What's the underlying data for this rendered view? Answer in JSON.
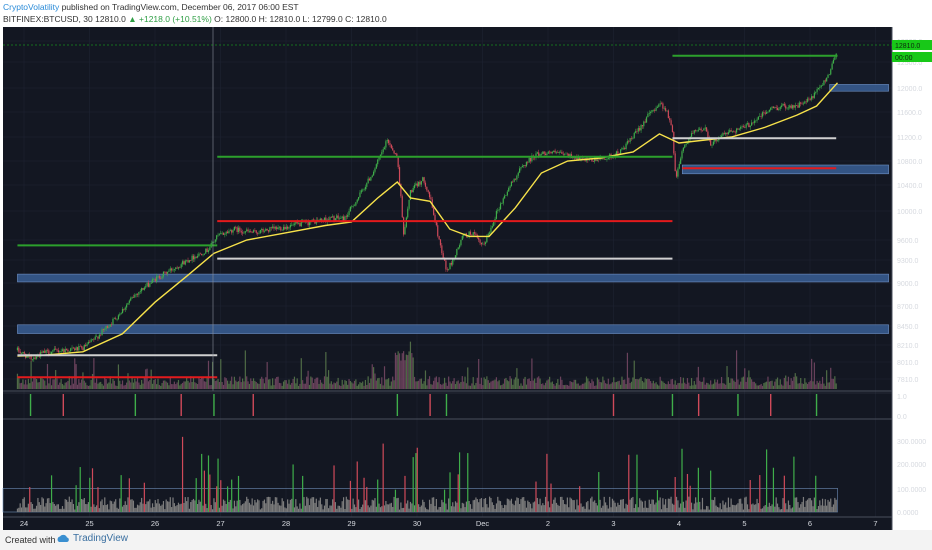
{
  "header": {
    "author": "CryptoVolatility",
    "published": " published on TradingView.com, December 06, 2017 06:00 EST",
    "symbol": "BITFINEX:BTCUSD, 30",
    "last": "12810.0",
    "change": "▲ +1218.0 (+10.51%)",
    "ohlc": "O: 12800.0  H: 12810.0  L: 12799.0  C: 12810.0"
  },
  "footer": {
    "created": "Created with",
    "brand": "TradingView"
  },
  "colors": {
    "background": "#131722",
    "up": "#26a69a",
    "candle_up": "#3fae4a",
    "candle_down": "#d04a5a",
    "ma": "#f7e24a",
    "level_green": "#2ca02c",
    "level_red": "#e31a1c",
    "level_white": "#d0d0d0",
    "zone_blue": "#3a5f95",
    "price_tag": "#18c818"
  },
  "chart_data": {
    "type": "candlestick",
    "symbol": "BITFINEX:BTCUSD",
    "interval": "30",
    "x_tick_labels": [
      "24",
      "25",
      "26",
      "27",
      "28",
      "29",
      "30",
      "Dec",
      "2",
      "3",
      "4",
      "5",
      "6",
      "7"
    ],
    "price_tick_labels": [
      "13000.0",
      "12500.0",
      "12000.0",
      "11600.0",
      "11200.0",
      "10800.0",
      "10400.0",
      "10000.0",
      "9600.0",
      "9300.0",
      "9000.0",
      "8700.0",
      "8450.0",
      "8210.0",
      "8010.0",
      "7810.0"
    ],
    "price_tags": [
      "12810.0",
      "00:00"
    ],
    "price_path": [
      [
        23.9,
        8150
      ],
      [
        24.1,
        8050
      ],
      [
        24.3,
        8120
      ],
      [
        24.6,
        8150
      ],
      [
        24.9,
        8170
      ],
      [
        25.1,
        8300
      ],
      [
        25.4,
        8550
      ],
      [
        25.7,
        8850
      ],
      [
        26.0,
        9050
      ],
      [
        26.3,
        9200
      ],
      [
        26.6,
        9350
      ],
      [
        26.8,
        9450
      ],
      [
        26.95,
        9650
      ],
      [
        27.2,
        9750
      ],
      [
        27.5,
        9700
      ],
      [
        27.8,
        9750
      ],
      [
        28.1,
        9800
      ],
      [
        28.4,
        9850
      ],
      [
        28.7,
        9900
      ],
      [
        28.9,
        9900
      ],
      [
        29.1,
        10200
      ],
      [
        29.3,
        10550
      ],
      [
        29.45,
        10900
      ],
      [
        29.55,
        11150
      ],
      [
        29.7,
        10850
      ],
      [
        29.8,
        9650
      ],
      [
        29.9,
        10300
      ],
      [
        30.1,
        10500
      ],
      [
        30.2,
        10200
      ],
      [
        30.3,
        9750
      ],
      [
        30.45,
        9150
      ],
      [
        30.55,
        9300
      ],
      [
        30.7,
        9650
      ],
      [
        30.85,
        9700
      ],
      [
        31.0,
        9500
      ],
      [
        31.1,
        9700
      ],
      [
        31.2,
        9950
      ],
      [
        31.4,
        10350
      ],
      [
        31.6,
        10700
      ],
      [
        31.8,
        10900
      ],
      [
        32.0,
        10950
      ],
      [
        32.3,
        10900
      ],
      [
        32.6,
        10800
      ],
      [
        32.9,
        10850
      ],
      [
        33.1,
        10950
      ],
      [
        33.3,
        11200
      ],
      [
        33.5,
        11500
      ],
      [
        33.7,
        11750
      ],
      [
        33.8,
        11650
      ],
      [
        33.9,
        11300
      ],
      [
        33.95,
        10500
      ],
      [
        34.05,
        11000
      ],
      [
        34.2,
        11250
      ],
      [
        34.4,
        11350
      ],
      [
        34.5,
        11050
      ],
      [
        34.6,
        11200
      ],
      [
        34.8,
        11300
      ],
      [
        35.0,
        11350
      ],
      [
        35.2,
        11500
      ],
      [
        35.4,
        11650
      ],
      [
        35.6,
        11700
      ],
      [
        35.8,
        11700
      ],
      [
        36.0,
        11800
      ],
      [
        36.15,
        12000
      ],
      [
        36.3,
        12300
      ],
      [
        36.42,
        12810
      ]
    ],
    "ma_path": [
      [
        23.9,
        8080
      ],
      [
        24.3,
        8090
      ],
      [
        24.9,
        8130
      ],
      [
        25.5,
        8350
      ],
      [
        26.0,
        8750
      ],
      [
        26.5,
        9100
      ],
      [
        26.9,
        9400
      ],
      [
        27.4,
        9600
      ],
      [
        28.0,
        9700
      ],
      [
        28.6,
        9800
      ],
      [
        29.0,
        9850
      ],
      [
        29.4,
        10200
      ],
      [
        29.7,
        10450
      ],
      [
        29.9,
        10200
      ],
      [
        30.2,
        10150
      ],
      [
        30.5,
        9750
      ],
      [
        30.8,
        9650
      ],
      [
        31.1,
        9650
      ],
      [
        31.5,
        10050
      ],
      [
        31.9,
        10600
      ],
      [
        32.3,
        10800
      ],
      [
        32.8,
        10850
      ],
      [
        33.3,
        10950
      ],
      [
        33.7,
        11250
      ],
      [
        34.0,
        11100
      ],
      [
        34.4,
        11150
      ],
      [
        34.8,
        11200
      ],
      [
        35.3,
        11350
      ],
      [
        35.8,
        11550
      ],
      [
        36.1,
        11700
      ],
      [
        36.42,
        12100
      ]
    ],
    "levels": [
      {
        "color": "green",
        "price": 9520,
        "from": 23.9,
        "to": 26.95
      },
      {
        "color": "green",
        "price": 10870,
        "from": 26.95,
        "to": 33.9
      },
      {
        "color": "green",
        "price": 12650,
        "from": 33.9,
        "to": 36.42
      },
      {
        "color": "red",
        "price": 7830,
        "from": 23.9,
        "to": 26.95
      },
      {
        "color": "red",
        "price": 9860,
        "from": 26.95,
        "to": 33.9
      },
      {
        "color": "red",
        "price": 10680,
        "from": 34.05,
        "to": 36.4
      },
      {
        "color": "white",
        "price": 8090,
        "from": 23.9,
        "to": 26.95
      },
      {
        "color": "white",
        "price": 9320,
        "from": 26.95,
        "to": 33.9
      },
      {
        "color": "white",
        "price": 11180,
        "from": 33.9,
        "to": 36.4
      }
    ],
    "zones": [
      {
        "low": 8380,
        "high": 8440,
        "from": 23.9,
        "to": 37.2
      },
      {
        "low": 9040,
        "high": 9090,
        "from": 23.9,
        "to": 37.2
      },
      {
        "low": 10620,
        "high": 10700,
        "from": 34.05,
        "to": 37.2
      },
      {
        "low": 11980,
        "high": 12030,
        "from": 36.3,
        "to": 37.2
      }
    ],
    "indicator_1": {
      "tick_labels": [
        "1.0",
        "0.0"
      ]
    },
    "indicator_2": {
      "tick_labels": [
        "300.0000",
        "200.0000",
        "100.0000",
        "0.0000"
      ],
      "threshold": 100
    }
  }
}
